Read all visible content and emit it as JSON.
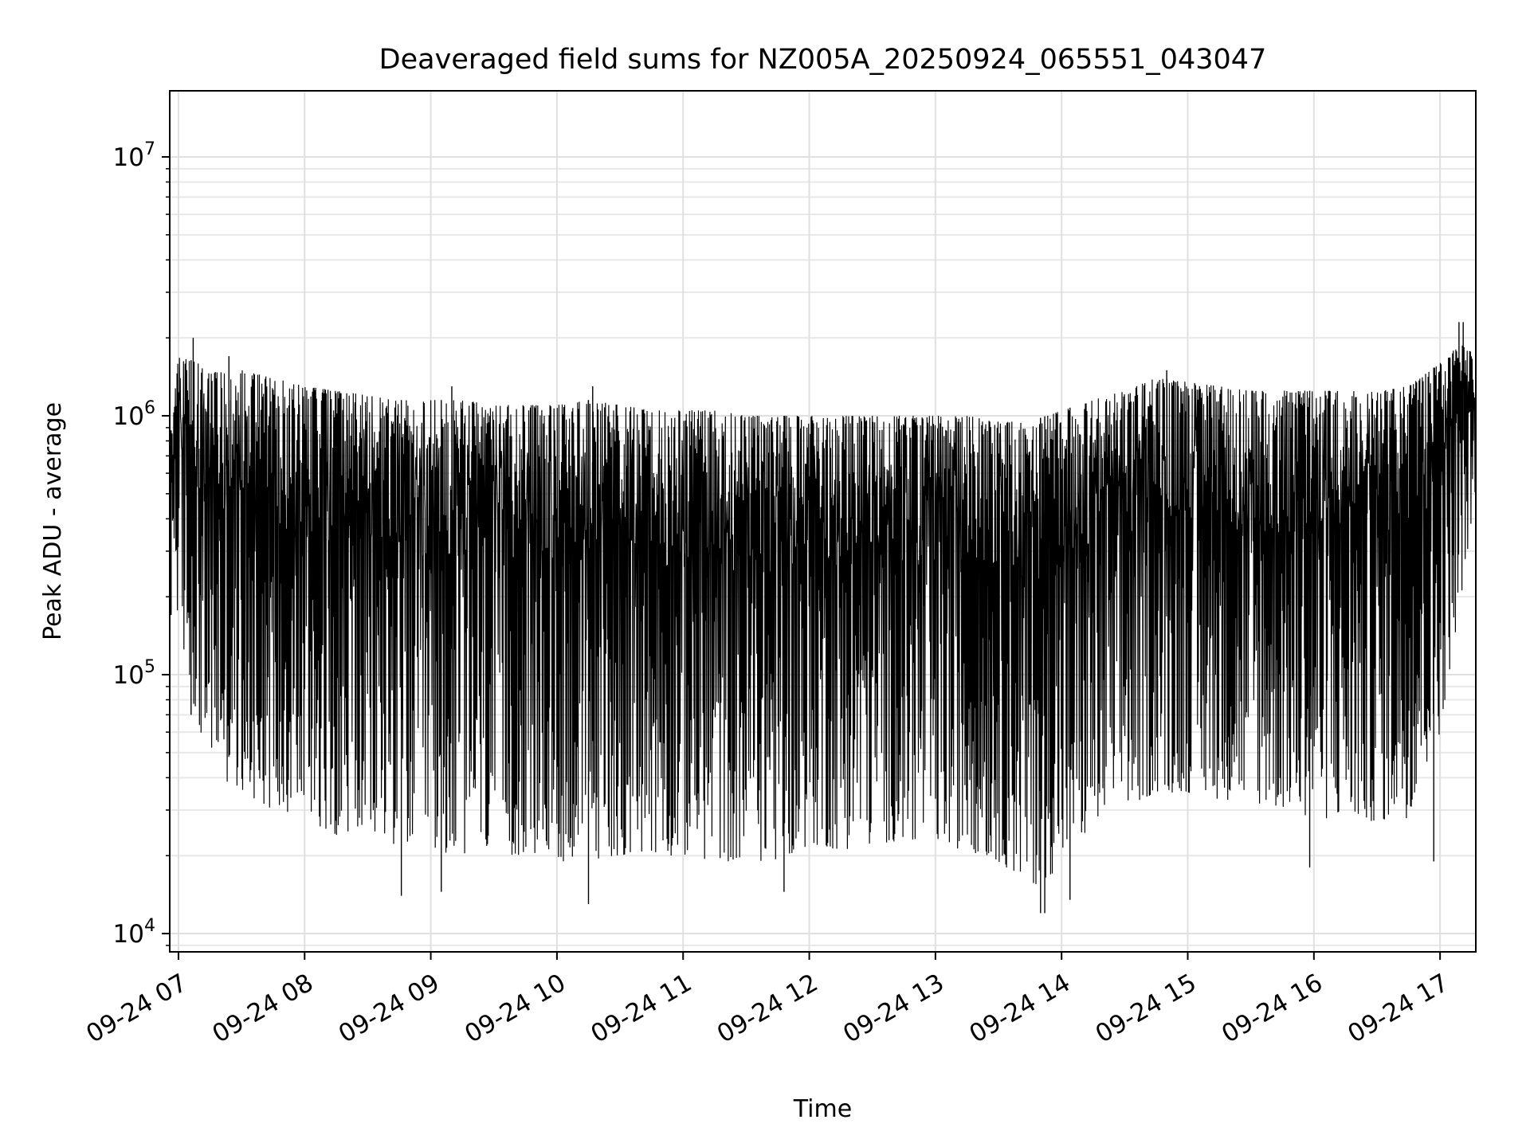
{
  "chart_data": {
    "type": "line",
    "title": "Deaveraged field sums for NZ005A_20250924_065551_043047",
    "xlabel": "Time",
    "ylabel": "Peak ADU - average",
    "yscale": "log",
    "ylim": [
      8500,
      18000000
    ],
    "xlim": [
      "2025-09-24T06:55:51",
      "2025-09-24T17:17:00"
    ],
    "grid": true,
    "grid_minor": true,
    "line_color": "#000000",
    "x_ticks": [
      {
        "label": "09-24 07",
        "value": "2025-09-24T07:00:00"
      },
      {
        "label": "09-24 08",
        "value": "2025-09-24T08:00:00"
      },
      {
        "label": "09-24 09",
        "value": "2025-09-24T09:00:00"
      },
      {
        "label": "09-24 10",
        "value": "2025-09-24T10:00:00"
      },
      {
        "label": "09-24 11",
        "value": "2025-09-24T11:00:00"
      },
      {
        "label": "09-24 12",
        "value": "2025-09-24T12:00:00"
      },
      {
        "label": "09-24 13",
        "value": "2025-09-24T13:00:00"
      },
      {
        "label": "09-24 14",
        "value": "2025-09-24T14:00:00"
      },
      {
        "label": "09-24 15",
        "value": "2025-09-24T15:00:00"
      },
      {
        "label": "09-24 16",
        "value": "2025-09-24T16:00:00"
      },
      {
        "label": "09-24 17",
        "value": "2025-09-24T17:00:00"
      }
    ],
    "y_ticks": [
      {
        "base": "10",
        "exp": "4",
        "value": 10000
      },
      {
        "base": "10",
        "exp": "5",
        "value": 100000
      },
      {
        "base": "10",
        "exp": "6",
        "value": 1000000
      },
      {
        "base": "10",
        "exp": "7",
        "value": 10000000
      }
    ],
    "series": [
      {
        "x": [
          "2025-09-24T06:56:00",
          "2025-09-24T07:00:00",
          "2025-09-24T07:10:00",
          "2025-09-24T07:20:00",
          "2025-09-24T07:30:00",
          "2025-09-24T07:45:00",
          "2025-09-24T08:00:00",
          "2025-09-24T08:15:00",
          "2025-09-24T08:30:00",
          "2025-09-24T08:45:00",
          "2025-09-24T09:00:00",
          "2025-09-24T09:15:00",
          "2025-09-24T09:30:00",
          "2025-09-24T09:45:00",
          "2025-09-24T10:00:00",
          "2025-09-24T10:15:00",
          "2025-09-24T10:30:00",
          "2025-09-24T10:45:00",
          "2025-09-24T11:00:00",
          "2025-09-24T11:15:00",
          "2025-09-24T11:30:00",
          "2025-09-24T11:45:00",
          "2025-09-24T12:00:00",
          "2025-09-24T12:15:00",
          "2025-09-24T12:30:00",
          "2025-09-24T12:45:00",
          "2025-09-24T13:00:00",
          "2025-09-24T13:15:00",
          "2025-09-24T13:30:00",
          "2025-09-24T13:45:00",
          "2025-09-24T14:00:00",
          "2025-09-24T14:15:00",
          "2025-09-24T14:30:00",
          "2025-09-24T14:45:00",
          "2025-09-24T15:00:00",
          "2025-09-24T15:15:00",
          "2025-09-24T15:30:00",
          "2025-09-24T15:45:00",
          "2025-09-24T16:00:00",
          "2025-09-24T16:15:00",
          "2025-09-24T16:30:00",
          "2025-09-24T16:45:00",
          "2025-09-24T17:00:00",
          "2025-09-24T17:10:00",
          "2025-09-24T17:17:00"
        ],
        "upper": [
          800000,
          1700000,
          1600000,
          1500000,
          1500000,
          1400000,
          1300000,
          1250000,
          1200000,
          1150000,
          1150000,
          1150000,
          1100000,
          1100000,
          1100000,
          1150000,
          1100000,
          1050000,
          1050000,
          1050000,
          1000000,
          1000000,
          1000000,
          1000000,
          1000000,
          1000000,
          1000000,
          1000000,
          950000,
          950000,
          1050000,
          1150000,
          1250000,
          1400000,
          1350000,
          1300000,
          1250000,
          1250000,
          1250000,
          1250000,
          1250000,
          1300000,
          1600000,
          1900000,
          1700000
        ],
        "lower": [
          500000,
          150000,
          60000,
          40000,
          35000,
          30000,
          28000,
          24000,
          23000,
          22000,
          21000,
          20000,
          20000,
          20000,
          19000,
          19000,
          20000,
          20000,
          20000,
          19000,
          19000,
          19000,
          22000,
          21000,
          22000,
          23000,
          22000,
          21000,
          19000,
          15000,
          18000,
          25000,
          30000,
          35000,
          35000,
          33000,
          32000,
          30000,
          28000,
          27000,
          27000,
          28000,
          60000,
          200000,
          500000
        ],
        "min_spikes": [
          {
            "x": "2025-09-24T06:56:30",
            "y": 170000
          },
          {
            "x": "2025-09-24T07:06:00",
            "y": 70000
          },
          {
            "x": "2025-09-24T08:46:00",
            "y": 14000
          },
          {
            "x": "2025-09-24T09:05:00",
            "y": 14500
          },
          {
            "x": "2025-09-24T10:15:00",
            "y": 13000
          },
          {
            "x": "2025-09-24T11:48:00",
            "y": 14500
          },
          {
            "x": "2025-09-24T13:50:00",
            "y": 12000
          },
          {
            "x": "2025-09-24T13:52:00",
            "y": 12000
          },
          {
            "x": "2025-09-24T14:04:00",
            "y": 13500
          },
          {
            "x": "2025-09-24T15:58:00",
            "y": 18000
          },
          {
            "x": "2025-09-24T16:57:00",
            "y": 19000
          }
        ],
        "max_spikes": [
          {
            "x": "2025-09-24T07:07:00",
            "y": 2000000
          },
          {
            "x": "2025-09-24T07:24:00",
            "y": 1700000
          },
          {
            "x": "2025-09-24T09:10:00",
            "y": 1300000
          },
          {
            "x": "2025-09-24T10:17:00",
            "y": 1300000
          },
          {
            "x": "2025-09-24T14:50:00",
            "y": 1500000
          },
          {
            "x": "2025-09-24T17:09:00",
            "y": 2300000
          },
          {
            "x": "2025-09-24T17:11:00",
            "y": 2300000
          }
        ]
      }
    ]
  }
}
